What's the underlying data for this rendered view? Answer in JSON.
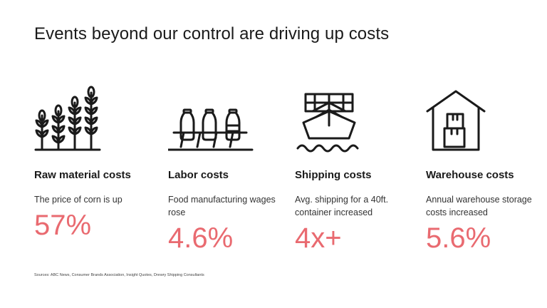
{
  "title": "Events beyond our control are driving up costs",
  "accent_color": "#e96a70",
  "items": [
    {
      "icon": "wheat-icon",
      "label": "Raw material costs",
      "description": "The price of corn is up",
      "value": "57%"
    },
    {
      "icon": "bottle-conveyor-icon",
      "label": "Labor costs",
      "description": "Food manufacturing wages rose",
      "value": "4.6%"
    },
    {
      "icon": "cargo-ship-icon",
      "label": "Shipping costs",
      "description": "Avg. shipping for a 40ft. container increased",
      "value": "4x+"
    },
    {
      "icon": "warehouse-icon",
      "label": "Warehouse costs",
      "description": "Annual warehouse storage costs increased",
      "value": "5.6%"
    }
  ],
  "footnote": "Sources: ABC News, Consumer Brands Association, Insight Quotes, Drewry Shipping Consultants"
}
